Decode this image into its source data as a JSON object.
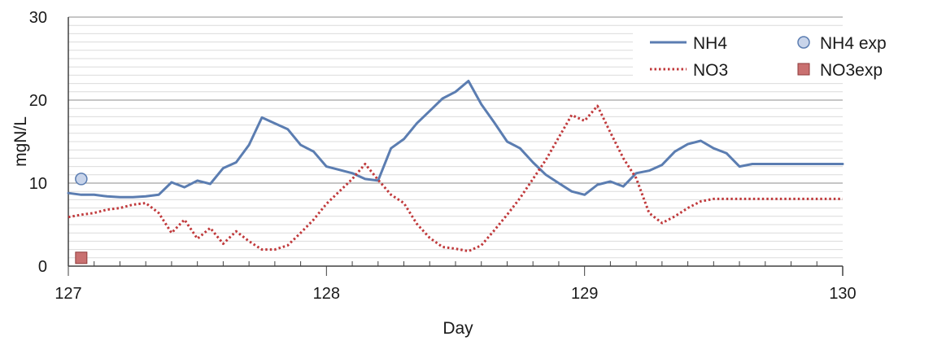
{
  "chart_data": {
    "type": "line",
    "xlabel": "Day",
    "ylabel": "mgN/L",
    "xlim": [
      127,
      130
    ],
    "ylim": [
      0,
      30
    ],
    "x_ticks": [
      127,
      128,
      129,
      130
    ],
    "y_ticks": [
      0,
      10,
      20,
      30
    ],
    "grid": "horizontal major and minor",
    "legend_position": "top-right",
    "series": [
      {
        "name": "NH4",
        "style": "solid",
        "color": "#5b7db1",
        "x": [
          127.0,
          127.05,
          127.1,
          127.15,
          127.2,
          127.25,
          127.3,
          127.35,
          127.4,
          127.45,
          127.5,
          127.55,
          127.6,
          127.65,
          127.7,
          127.75,
          127.8,
          127.85,
          127.9,
          127.95,
          128.0,
          128.05,
          128.1,
          128.15,
          128.2,
          128.25,
          128.3,
          128.35,
          128.4,
          128.45,
          128.5,
          128.55,
          128.6,
          128.65,
          128.7,
          128.75,
          128.8,
          128.85,
          128.9,
          128.95,
          129.0,
          129.05,
          129.1,
          129.15,
          129.2,
          129.25,
          129.3,
          129.35,
          129.4,
          129.45,
          129.5,
          129.55,
          129.6,
          129.65,
          129.7,
          129.75,
          129.8,
          129.85,
          129.9,
          129.95,
          130.0
        ],
        "y": [
          8.8,
          8.6,
          8.6,
          8.4,
          8.3,
          8.3,
          8.4,
          8.6,
          10.1,
          9.5,
          10.3,
          9.9,
          11.8,
          12.5,
          14.6,
          17.9,
          17.2,
          16.5,
          14.6,
          13.8,
          12.0,
          11.6,
          11.2,
          10.5,
          10.3,
          14.2,
          15.3,
          17.2,
          18.7,
          20.2,
          21.0,
          22.3,
          19.5,
          17.3,
          15.0,
          14.2,
          12.5,
          11.0,
          10.0,
          9.0,
          8.6,
          9.8,
          10.2,
          9.6,
          11.2,
          11.5,
          12.2,
          13.8,
          14.7,
          15.1,
          14.2,
          13.6,
          12.0,
          12.3,
          12.3,
          12.3,
          12.3,
          12.3,
          12.3,
          12.3,
          12.3
        ]
      },
      {
        "name": "NO3",
        "style": "dotted",
        "color": "#c0393b",
        "x": [
          127.0,
          127.05,
          127.1,
          127.15,
          127.2,
          127.25,
          127.3,
          127.35,
          127.4,
          127.45,
          127.5,
          127.55,
          127.6,
          127.65,
          127.7,
          127.75,
          127.8,
          127.85,
          127.9,
          127.95,
          128.0,
          128.05,
          128.1,
          128.15,
          128.2,
          128.25,
          128.3,
          128.35,
          128.4,
          128.45,
          128.5,
          128.55,
          128.6,
          128.65,
          128.7,
          128.75,
          128.8,
          128.85,
          128.9,
          128.95,
          129.0,
          129.05,
          129.1,
          129.15,
          129.2,
          129.25,
          129.3,
          129.35,
          129.4,
          129.45,
          129.5,
          129.55,
          129.6,
          129.65,
          129.7,
          129.75,
          129.8,
          129.85,
          129.9,
          129.95,
          130.0
        ],
        "y": [
          5.9,
          6.2,
          6.4,
          6.8,
          7.0,
          7.4,
          7.6,
          6.4,
          4.0,
          5.6,
          3.3,
          4.6,
          2.7,
          4.2,
          3.0,
          2.0,
          2.0,
          2.5,
          4.0,
          5.6,
          7.5,
          9.0,
          10.5,
          12.3,
          10.4,
          8.6,
          7.6,
          5.1,
          3.4,
          2.3,
          2.1,
          1.8,
          2.5,
          4.3,
          6.2,
          8.2,
          10.5,
          12.8,
          15.5,
          18.2,
          17.5,
          19.3,
          16.1,
          13.0,
          10.6,
          6.4,
          5.2,
          6.0,
          7.0,
          7.8,
          8.1,
          8.1,
          8.1,
          8.1,
          8.1,
          8.1,
          8.1,
          8.1,
          8.1,
          8.1,
          8.1
        ]
      },
      {
        "name": "NH4 exp",
        "style": "marker-circle",
        "color": "#c8d4ea",
        "x": [
          127.05
        ],
        "y": [
          10.5
        ]
      },
      {
        "name": "NO3exp",
        "style": "marker-square",
        "color": "#c97070",
        "x": [
          127.05
        ],
        "y": [
          1.0
        ]
      }
    ]
  }
}
